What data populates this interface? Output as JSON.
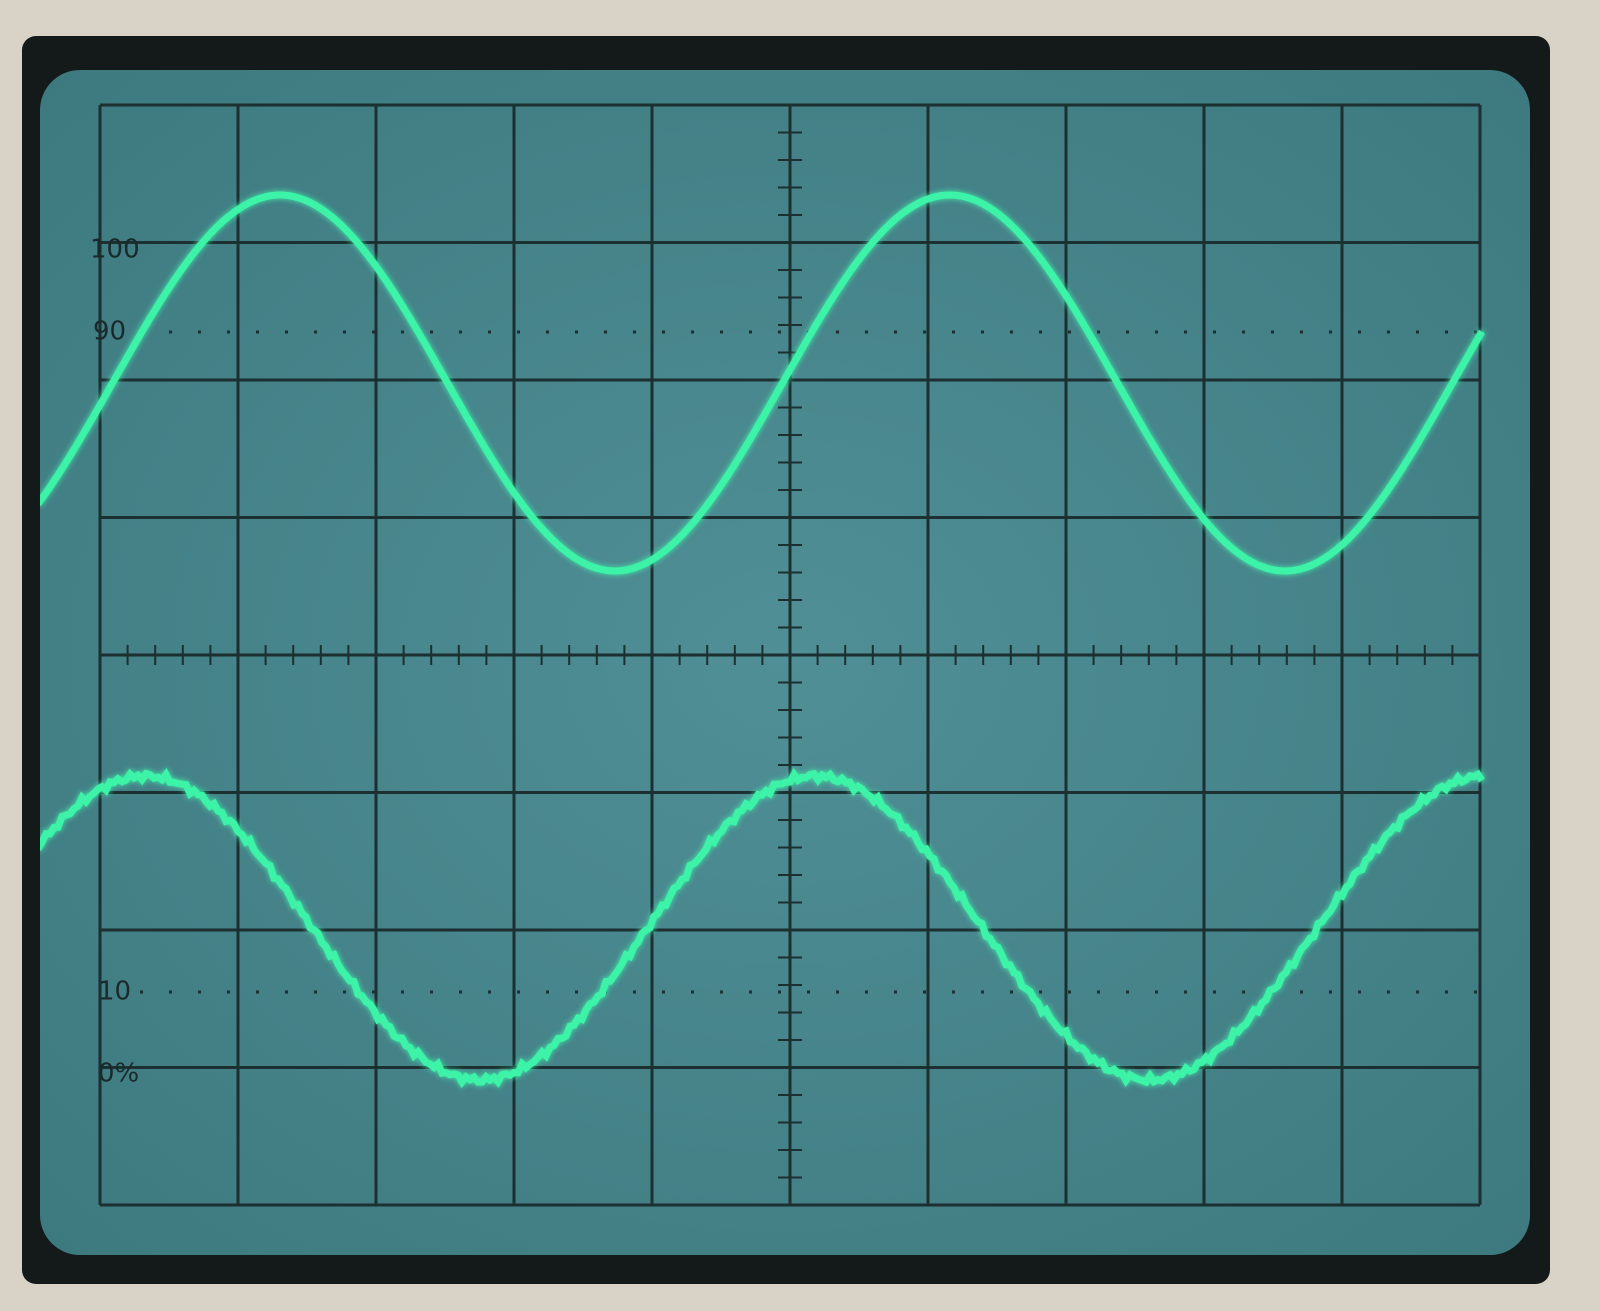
{
  "graticule": {
    "labels": [
      "100",
      "90",
      "10",
      "0%"
    ]
  }
}
